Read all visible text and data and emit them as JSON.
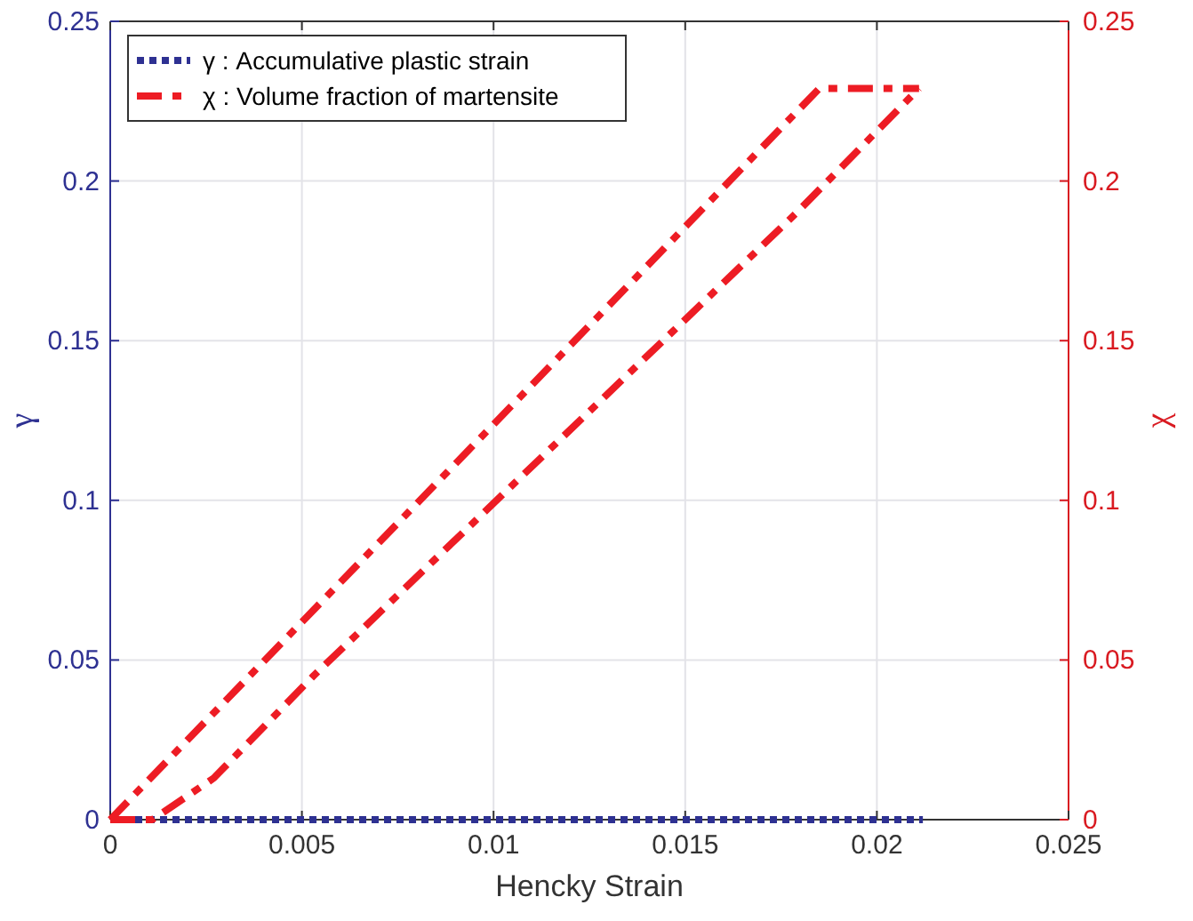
{
  "chart_data": {
    "type": "line",
    "xlabel": "Hencky Strain",
    "ylabel": "γ",
    "y2label": "χ",
    "xlim": [
      0,
      0.025
    ],
    "xticks": [
      0,
      0.005,
      0.01,
      0.015,
      0.02,
      0.025
    ],
    "ylim": [
      0,
      0.25
    ],
    "yticks": [
      0,
      0.05,
      0.1,
      0.15,
      0.2,
      0.25
    ],
    "y2lim": [
      0,
      0.25
    ],
    "y2ticks": [
      0,
      0.05,
      0.1,
      0.15,
      0.2,
      0.25
    ],
    "grid": true,
    "legend": "top left",
    "series": [
      {
        "name": "γ : Accumulative plastic strain",
        "color": "#2e3192",
        "line_style": "dotted",
        "x": [
          0,
          0.0212
        ],
        "values": [
          0,
          0
        ]
      },
      {
        "name": "χ : Volume fraction of martensite",
        "color": "#ed1c24",
        "line_style": "dashed",
        "axis": "y2",
        "x": [
          0,
          0.0185,
          0.0211
        ],
        "values": [
          0,
          0.229,
          0.229
        ]
      },
      {
        "color": "#ed1c24",
        "line_style": "dashed",
        "axis": "y2",
        "x": [
          0,
          0.0011,
          0.0027,
          0.0053,
          0.0179,
          0.0211
        ],
        "values": [
          0,
          0,
          0.013,
          0.045,
          0.19,
          0.229
        ]
      }
    ]
  }
}
